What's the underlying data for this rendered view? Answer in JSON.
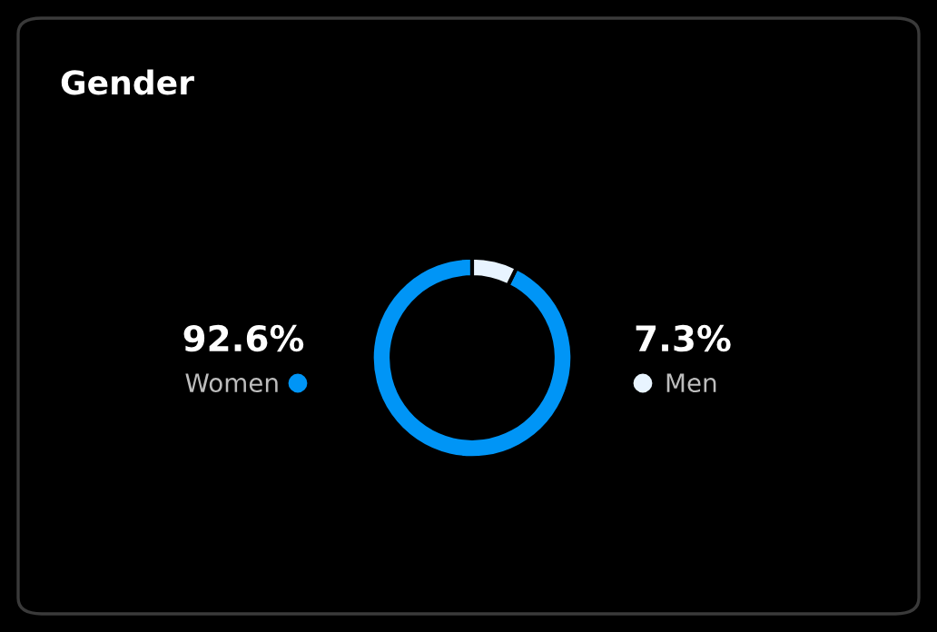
{
  "chart_data": {
    "type": "donut",
    "title": "Gender",
    "categories": [
      "Women",
      "Men"
    ],
    "values": [
      92.6,
      7.3
    ],
    "colors": [
      "#0095f6",
      "#e8f4ff"
    ],
    "value_labels": [
      "92.6%",
      "7.3%"
    ]
  }
}
